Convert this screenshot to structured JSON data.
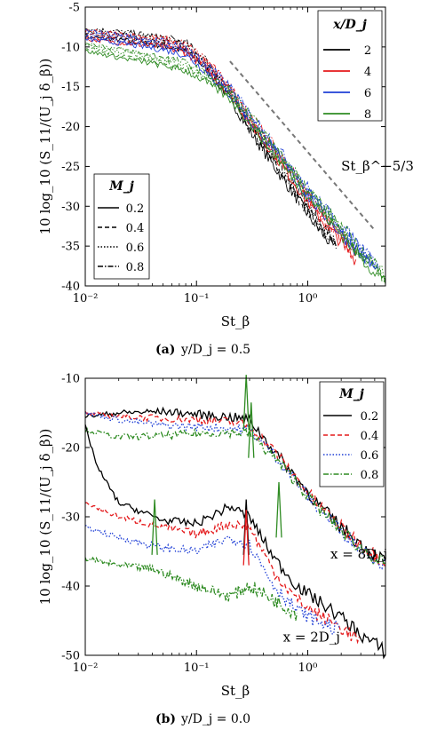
{
  "chart_data": [
    {
      "type": "line",
      "panel_label": "(a)",
      "caption": "y/D_j = 0.5",
      "xlabel": "St_β",
      "ylabel": "10 log_10 (S_11/(U_j δ_β))",
      "xscale": "log",
      "xlim": [
        0.01,
        5
      ],
      "ylim": [
        -40,
        -5
      ],
      "xticks": [
        0.01,
        0.1,
        1
      ],
      "xtick_labels": [
        "10⁻²",
        "10⁻¹",
        "10⁰"
      ],
      "yticks": [
        -5,
        -10,
        -15,
        -20,
        -25,
        -30,
        -35,
        -40
      ],
      "ytick_labels": [
        "-5",
        "-10",
        "-15",
        "-20",
        "-25",
        "-30",
        "-35",
        "-40"
      ],
      "grid": false,
      "legend_color": {
        "title": "x/D_j",
        "placement": "top-right",
        "entries": [
          {
            "label": "2",
            "color": "#000000"
          },
          {
            "label": "4",
            "color": "#e41a1c"
          },
          {
            "label": "6",
            "color": "#1f3fd6"
          },
          {
            "label": "8",
            "color": "#2e8b22"
          }
        ]
      },
      "legend_style": {
        "title": "M_j",
        "placement": "bottom-left",
        "entries": [
          {
            "label": "0.2",
            "dash": "solid"
          },
          {
            "label": "0.4",
            "dash": "dashed"
          },
          {
            "label": "0.6",
            "dash": "dotted"
          },
          {
            "label": "0.8",
            "dash": "dashdot"
          }
        ]
      },
      "reference_line": {
        "label": "St_β^−5/3",
        "color": "#777777",
        "points": [
          [
            0.2,
            -11.8
          ],
          [
            4.0,
            -33
          ]
        ]
      },
      "series": [
        {
          "group": "x/D_j = 2",
          "color": "#000000",
          "points": [
            [
              0.01,
              -8.2
            ],
            [
              0.02,
              -8.6
            ],
            [
              0.05,
              -9.3
            ],
            [
              0.08,
              -10
            ],
            [
              0.12,
              -12
            ],
            [
              0.2,
              -16
            ],
            [
              0.3,
              -20
            ],
            [
              0.5,
              -24.5
            ],
            [
              0.8,
              -28.5
            ],
            [
              1.2,
              -32
            ],
            [
              1.8,
              -35
            ]
          ]
        },
        {
          "group": "x/D_j = 4",
          "color": "#e41a1c",
          "points": [
            [
              0.01,
              -8.5
            ],
            [
              0.02,
              -8.9
            ],
            [
              0.05,
              -9.5
            ],
            [
              0.08,
              -10.2
            ],
            [
              0.12,
              -12
            ],
            [
              0.2,
              -15.5
            ],
            [
              0.3,
              -19
            ],
            [
              0.5,
              -23
            ],
            [
              0.8,
              -27
            ],
            [
              1.2,
              -30.5
            ],
            [
              2.0,
              -34
            ],
            [
              2.8,
              -36.5
            ]
          ]
        },
        {
          "group": "x/D_j = 6",
          "color": "#1f3fd6",
          "points": [
            [
              0.01,
              -8.5
            ],
            [
              0.02,
              -9
            ],
            [
              0.05,
              -9.8
            ],
            [
              0.08,
              -10.5
            ],
            [
              0.12,
              -12.5
            ],
            [
              0.2,
              -15.5
            ],
            [
              0.3,
              -18.8
            ],
            [
              0.5,
              -22.5
            ],
            [
              0.8,
              -26.5
            ],
            [
              1.2,
              -29.5
            ],
            [
              2.0,
              -33
            ],
            [
              3.0,
              -35.5
            ],
            [
              4.5,
              -38
            ]
          ]
        },
        {
          "group": "x/D_j = 8",
          "color": "#2e8b22",
          "points": [
            [
              0.01,
              -10
            ],
            [
              0.02,
              -10.8
            ],
            [
              0.05,
              -11.8
            ],
            [
              0.08,
              -12.5
            ],
            [
              0.12,
              -13.8
            ],
            [
              0.2,
              -16
            ],
            [
              0.3,
              -19
            ],
            [
              0.5,
              -23
            ],
            [
              0.8,
              -26.5
            ],
            [
              1.2,
              -29.5
            ],
            [
              2.0,
              -33
            ],
            [
              3.0,
              -36
            ],
            [
              5.0,
              -39
            ]
          ]
        }
      ]
    },
    {
      "type": "line",
      "panel_label": "(b)",
      "caption": "y/D_j = 0.0",
      "xlabel": "St_β",
      "ylabel": "10 log_10 (S_11/(U_j δ_β))",
      "xscale": "log",
      "xlim": [
        0.01,
        5
      ],
      "ylim": [
        -50,
        -10
      ],
      "xticks": [
        0.01,
        0.1,
        1
      ],
      "xtick_labels": [
        "10⁻²",
        "10⁻¹",
        "10⁰"
      ],
      "yticks": [
        -10,
        -20,
        -30,
        -40,
        -50
      ],
      "ytick_labels": [
        "-10",
        "-20",
        "-30",
        "-40",
        "-50"
      ],
      "grid": false,
      "legend": {
        "title": "M_j",
        "placement": "top-right",
        "entries": [
          {
            "label": "0.2",
            "color": "#000000",
            "dash": "solid"
          },
          {
            "label": "0.4",
            "color": "#e41a1c",
            "dash": "dashed"
          },
          {
            "label": "0.6",
            "color": "#1f3fd6",
            "dash": "dotted"
          },
          {
            "label": "0.8",
            "color": "#2e8b22",
            "dash": "dashdot"
          }
        ]
      },
      "annotations": [
        {
          "text": "x = 8D_j",
          "x": 1.6,
          "y": -36
        },
        {
          "text": "x = 2D_j",
          "x": 0.6,
          "y": -48
        }
      ],
      "series": [
        {
          "name": "0.2",
          "location": "x = 8D_j",
          "color": "#000000",
          "dash": "solid",
          "points": [
            [
              0.01,
              -15.5
            ],
            [
              0.02,
              -15
            ],
            [
              0.05,
              -14.8
            ],
            [
              0.1,
              -15.2
            ],
            [
              0.2,
              -15.6
            ],
            [
              0.3,
              -16
            ],
            [
              0.5,
              -20.5
            ],
            [
              0.8,
              -24.5
            ],
            [
              1.2,
              -28
            ],
            [
              2.0,
              -31.5
            ],
            [
              3.0,
              -34
            ],
            [
              5.0,
              -36.5
            ]
          ]
        },
        {
          "name": "0.4",
          "location": "x = 8D_j",
          "color": "#e41a1c",
          "dash": "dashed",
          "points": [
            [
              0.01,
              -15
            ],
            [
              0.02,
              -15.5
            ],
            [
              0.05,
              -15.8
            ],
            [
              0.1,
              -16
            ],
            [
              0.2,
              -16.3
            ],
            [
              0.3,
              -16.8
            ],
            [
              0.5,
              -20.5
            ],
            [
              0.8,
              -24.5
            ],
            [
              1.2,
              -28
            ],
            [
              2.0,
              -31.5
            ],
            [
              3.0,
              -34
            ],
            [
              5.0,
              -36.5
            ]
          ]
        },
        {
          "name": "0.6",
          "location": "x = 8D_j",
          "color": "#1f3fd6",
          "dash": "dotted",
          "points": [
            [
              0.01,
              -15
            ],
            [
              0.02,
              -16
            ],
            [
              0.05,
              -16.8
            ],
            [
              0.1,
              -17
            ],
            [
              0.2,
              -17.2
            ],
            [
              0.3,
              -17.5
            ],
            [
              0.5,
              -21
            ],
            [
              0.8,
              -25
            ],
            [
              1.2,
              -28.5
            ],
            [
              2.0,
              -32
            ],
            [
              3.0,
              -34.5
            ],
            [
              5.0,
              -37
            ]
          ]
        },
        {
          "name": "0.8",
          "location": "x = 8D_j",
          "color": "#2e8b22",
          "dash": "dashdot",
          "points": [
            [
              0.01,
              -17.5
            ],
            [
              0.02,
              -18.5
            ],
            [
              0.05,
              -18.3
            ],
            [
              0.1,
              -18
            ],
            [
              0.2,
              -17.8
            ],
            [
              0.3,
              -18
            ],
            [
              0.5,
              -21.5
            ],
            [
              0.8,
              -25
            ],
            [
              1.2,
              -28.5
            ],
            [
              2.0,
              -32
            ],
            [
              3.0,
              -34.5
            ],
            [
              5.0,
              -37
            ]
          ]
        },
        {
          "name": "0.2",
          "location": "x = 2D_j",
          "color": "#000000",
          "dash": "solid",
          "points": [
            [
              0.01,
              -17
            ],
            [
              0.013,
              -23
            ],
            [
              0.02,
              -28
            ],
            [
              0.05,
              -30.5
            ],
            [
              0.1,
              -31
            ],
            [
              0.2,
              -28.5
            ],
            [
              0.3,
              -30
            ],
            [
              0.5,
              -36
            ],
            [
              0.8,
              -40
            ],
            [
              1.2,
              -42
            ],
            [
              2.0,
              -44.5
            ],
            [
              3.0,
              -47
            ],
            [
              5.0,
              -49.5
            ]
          ]
        },
        {
          "name": "0.4",
          "location": "x = 2D_j",
          "color": "#e41a1c",
          "dash": "dashed",
          "points": [
            [
              0.01,
              -28
            ],
            [
              0.02,
              -30
            ],
            [
              0.05,
              -31.5
            ],
            [
              0.1,
              -32.5
            ],
            [
              0.2,
              -31
            ],
            [
              0.3,
              -31.5
            ],
            [
              0.5,
              -38
            ],
            [
              0.8,
              -42
            ],
            [
              1.2,
              -44
            ],
            [
              2.0,
              -46
            ],
            [
              3.0,
              -48
            ]
          ]
        },
        {
          "name": "0.6",
          "location": "x = 2D_j",
          "color": "#1f3fd6",
          "dash": "dotted",
          "points": [
            [
              0.01,
              -31.5
            ],
            [
              0.02,
              -33
            ],
            [
              0.05,
              -34.5
            ],
            [
              0.1,
              -35
            ],
            [
              0.2,
              -33
            ],
            [
              0.3,
              -34
            ],
            [
              0.5,
              -40
            ],
            [
              0.8,
              -43.5
            ],
            [
              1.2,
              -45
            ],
            [
              2.0,
              -46.5
            ]
          ]
        },
        {
          "name": "0.8",
          "location": "x = 2D_j",
          "color": "#2e8b22",
          "dash": "dashdot",
          "points": [
            [
              0.01,
              -36
            ],
            [
              0.02,
              -37
            ],
            [
              0.04,
              -37.5
            ],
            [
              0.1,
              -40
            ],
            [
              0.2,
              -41.5
            ],
            [
              0.3,
              -40
            ],
            [
              0.5,
              -42
            ],
            [
              0.8,
              -44
            ]
          ]
        }
      ],
      "peaks": [
        {
          "series_color": "#000000",
          "x": 0.28,
          "y": -27.5
        },
        {
          "series_color": "#e41a1c",
          "x": 0.28,
          "y": -29
        },
        {
          "series_color": "#2e8b22",
          "x": 0.042,
          "y": -27.5
        },
        {
          "series_color": "#2e8b22",
          "x": 0.28,
          "y": -9.5
        },
        {
          "series_color": "#2e8b22",
          "x": 0.31,
          "y": -13.5
        },
        {
          "series_color": "#2e8b22",
          "x": 0.55,
          "y": -25
        }
      ]
    }
  ]
}
